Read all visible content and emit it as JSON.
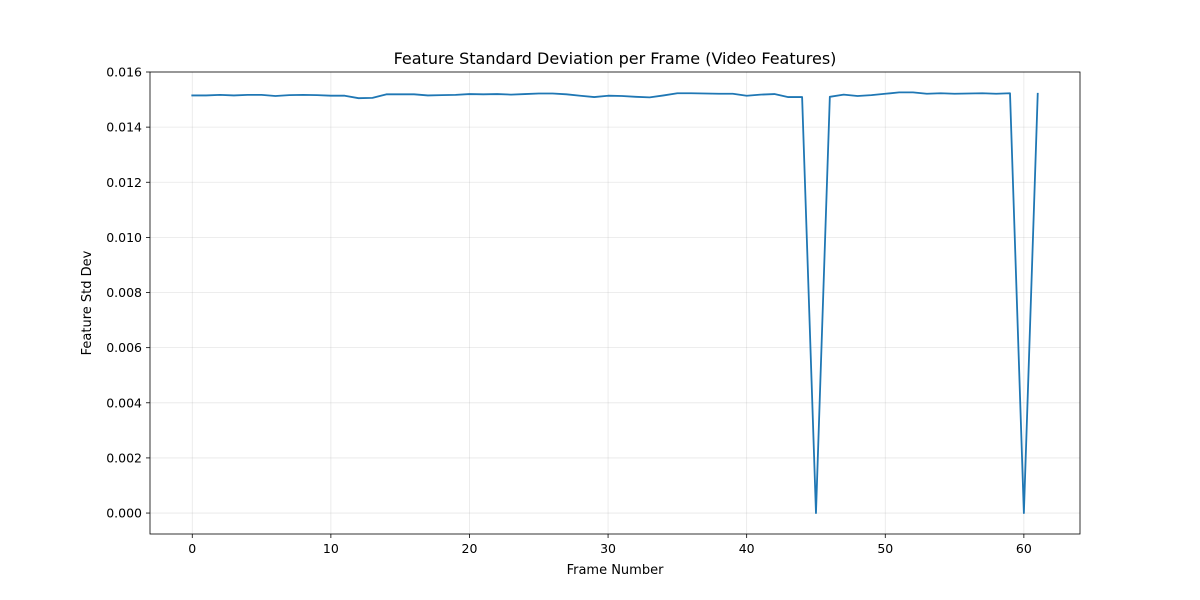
{
  "chart_data": {
    "type": "line",
    "title": "Feature Standard Deviation per Frame (Video Features)",
    "xlabel": "Frame Number",
    "ylabel": "Feature Std Dev",
    "xlim": [
      -3.05,
      64.05
    ],
    "ylim": [
      -0.00076,
      0.016
    ],
    "xticks": [
      0,
      10,
      20,
      30,
      40,
      50,
      60
    ],
    "yticks": [
      0.0,
      0.002,
      0.004,
      0.006,
      0.008,
      0.01,
      0.012,
      0.014,
      0.016
    ],
    "ytick_labels": [
      "0.000",
      "0.002",
      "0.004",
      "0.006",
      "0.008",
      "0.010",
      "0.012",
      "0.014",
      "0.016"
    ],
    "xtick_labels": [
      "0",
      "10",
      "20",
      "30",
      "40",
      "50",
      "60"
    ],
    "grid": true,
    "legend": "none",
    "series": [
      {
        "color": "#1f77b4",
        "x": [
          0,
          1,
          2,
          3,
          4,
          5,
          6,
          7,
          8,
          9,
          10,
          11,
          12,
          13,
          14,
          15,
          16,
          17,
          18,
          19,
          20,
          21,
          22,
          23,
          24,
          25,
          26,
          27,
          28,
          29,
          30,
          31,
          32,
          33,
          34,
          35,
          36,
          37,
          38,
          39,
          40,
          41,
          42,
          43,
          44,
          45,
          46,
          47,
          48,
          49,
          50,
          51,
          52,
          53,
          54,
          55,
          56,
          57,
          58,
          59,
          60,
          61
        ],
        "y": [
          0.01515,
          0.01515,
          0.01517,
          0.01515,
          0.01517,
          0.01517,
          0.01513,
          0.01516,
          0.01517,
          0.01516,
          0.01514,
          0.01514,
          0.01505,
          0.01506,
          0.01519,
          0.01519,
          0.01519,
          0.01515,
          0.01516,
          0.01517,
          0.0152,
          0.01519,
          0.0152,
          0.01518,
          0.0152,
          0.01522,
          0.01522,
          0.01519,
          0.01514,
          0.01509,
          0.01514,
          0.01513,
          0.0151,
          0.01508,
          0.01515,
          0.01523,
          0.01523,
          0.01522,
          0.01521,
          0.01521,
          0.01514,
          0.01518,
          0.0152,
          0.01509,
          0.01509,
          0.0,
          0.0151,
          0.01518,
          0.01513,
          0.01516,
          0.01521,
          0.01526,
          0.01526,
          0.01521,
          0.01523,
          0.01521,
          0.01522,
          0.01523,
          0.01521,
          0.01523,
          0.0,
          0.01521
        ]
      }
    ]
  }
}
